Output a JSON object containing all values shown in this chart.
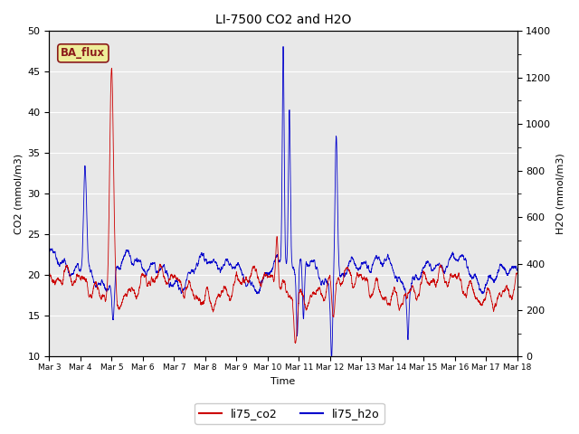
{
  "title": "LI-7500 CO2 and H2O",
  "xlabel": "Time",
  "ylabel_left": "CO2 (mmol/m3)",
  "ylabel_right": "H2O (mmol/m3)",
  "ylim_left": [
    10,
    50
  ],
  "ylim_right": [
    0,
    1400
  ],
  "background_color": "#e8e8e8",
  "figure_color": "#ffffff",
  "co2_color": "#cc0000",
  "h2o_color": "#0000cc",
  "legend_labels": [
    "li75_co2",
    "li75_h2o"
  ],
  "annotation_text": "BA_flux",
  "annotation_bg": "#eeee99",
  "annotation_border": "#8b1a1a",
  "x_tick_labels": [
    "Mar 3",
    "Mar 4",
    "Mar 5",
    "Mar 6",
    "Mar 7",
    "Mar 8",
    "Mar 9",
    "Mar 10",
    "Mar 11",
    "Mar 12",
    "Mar 13",
    "Mar 14",
    "Mar 15",
    "Mar 16",
    "Mar 17",
    "Mar 18"
  ],
  "num_points": 5000,
  "seed": 7
}
